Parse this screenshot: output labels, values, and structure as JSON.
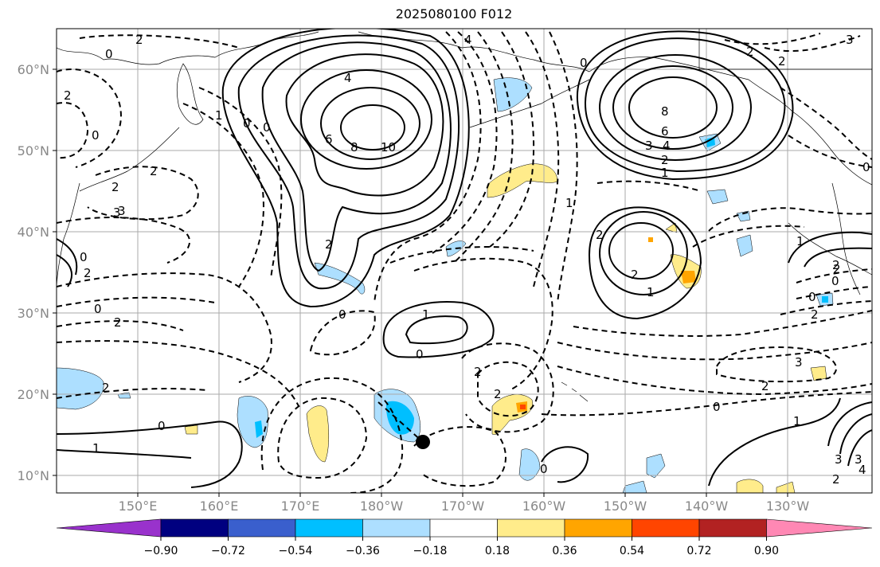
{
  "title": "2025080100 F012",
  "lat_labels": [
    "60°N",
    "50°N",
    "40°N",
    "30°N",
    "20°N",
    "10°N"
  ],
  "lon_labels": [
    "150°E",
    "160°E",
    "170°E",
    "180°W",
    "170°W",
    "160°W",
    "150°W",
    "140°W",
    "130°W"
  ],
  "colorbar": {
    "ticks": [
      "−0.90",
      "−0.72",
      "−0.54",
      "−0.36",
      "−0.18",
      "0.18",
      "0.36",
      "0.54",
      "0.72",
      "0.90"
    ],
    "colors": [
      "#9932CC",
      "#000080",
      "#3A5FCD",
      "#00BFFF",
      "#ADDFFF",
      "#FFFFFF",
      "#FFEC8B",
      "#FFA500",
      "#FF4500",
      "#B22222",
      "#FF88B4"
    ]
  },
  "contour_labels": [
    {
      "text": "2"
    },
    {
      "text": "0"
    },
    {
      "text": "4"
    },
    {
      "text": "2"
    },
    {
      "text": "0"
    },
    {
      "text": "2"
    },
    {
      "text": "0"
    },
    {
      "text": "2"
    },
    {
      "text": "3"
    },
    {
      "text": "4"
    },
    {
      "text": "6"
    },
    {
      "text": "8"
    },
    {
      "text": "10"
    },
    {
      "text": "0"
    },
    {
      "text": "0"
    },
    {
      "text": "1"
    },
    {
      "text": "2"
    },
    {
      "text": "3"
    },
    {
      "text": "0"
    },
    {
      "text": "2"
    },
    {
      "text": "1"
    },
    {
      "text": "2"
    },
    {
      "text": "0"
    },
    {
      "text": "2"
    },
    {
      "text": "8"
    },
    {
      "text": "6"
    },
    {
      "text": "4"
    },
    {
      "text": "3"
    },
    {
      "text": "2"
    },
    {
      "text": "1"
    },
    {
      "text": "2"
    },
    {
      "text": "1"
    },
    {
      "text": "2"
    },
    {
      "text": "0"
    },
    {
      "text": "2"
    },
    {
      "text": "3"
    },
    {
      "text": "2"
    },
    {
      "text": "1"
    },
    {
      "text": "0"
    },
    {
      "text": "1"
    },
    {
      "text": "3"
    },
    {
      "text": "2"
    },
    {
      "text": "3"
    },
    {
      "text": "2"
    },
    {
      "text": "0"
    },
    {
      "text": "0"
    },
    {
      "text": "1"
    },
    {
      "text": "2"
    },
    {
      "text": "2"
    },
    {
      "text": "1"
    },
    {
      "text": "0"
    },
    {
      "text": "2"
    },
    {
      "text": "0"
    },
    {
      "text": "2"
    },
    {
      "text": "3"
    },
    {
      "text": "4"
    },
    {
      "text": "2"
    },
    {
      "text": "0"
    },
    {
      "text": "0"
    }
  ],
  "marker": {
    "type": "dot",
    "color": "#000000"
  }
}
